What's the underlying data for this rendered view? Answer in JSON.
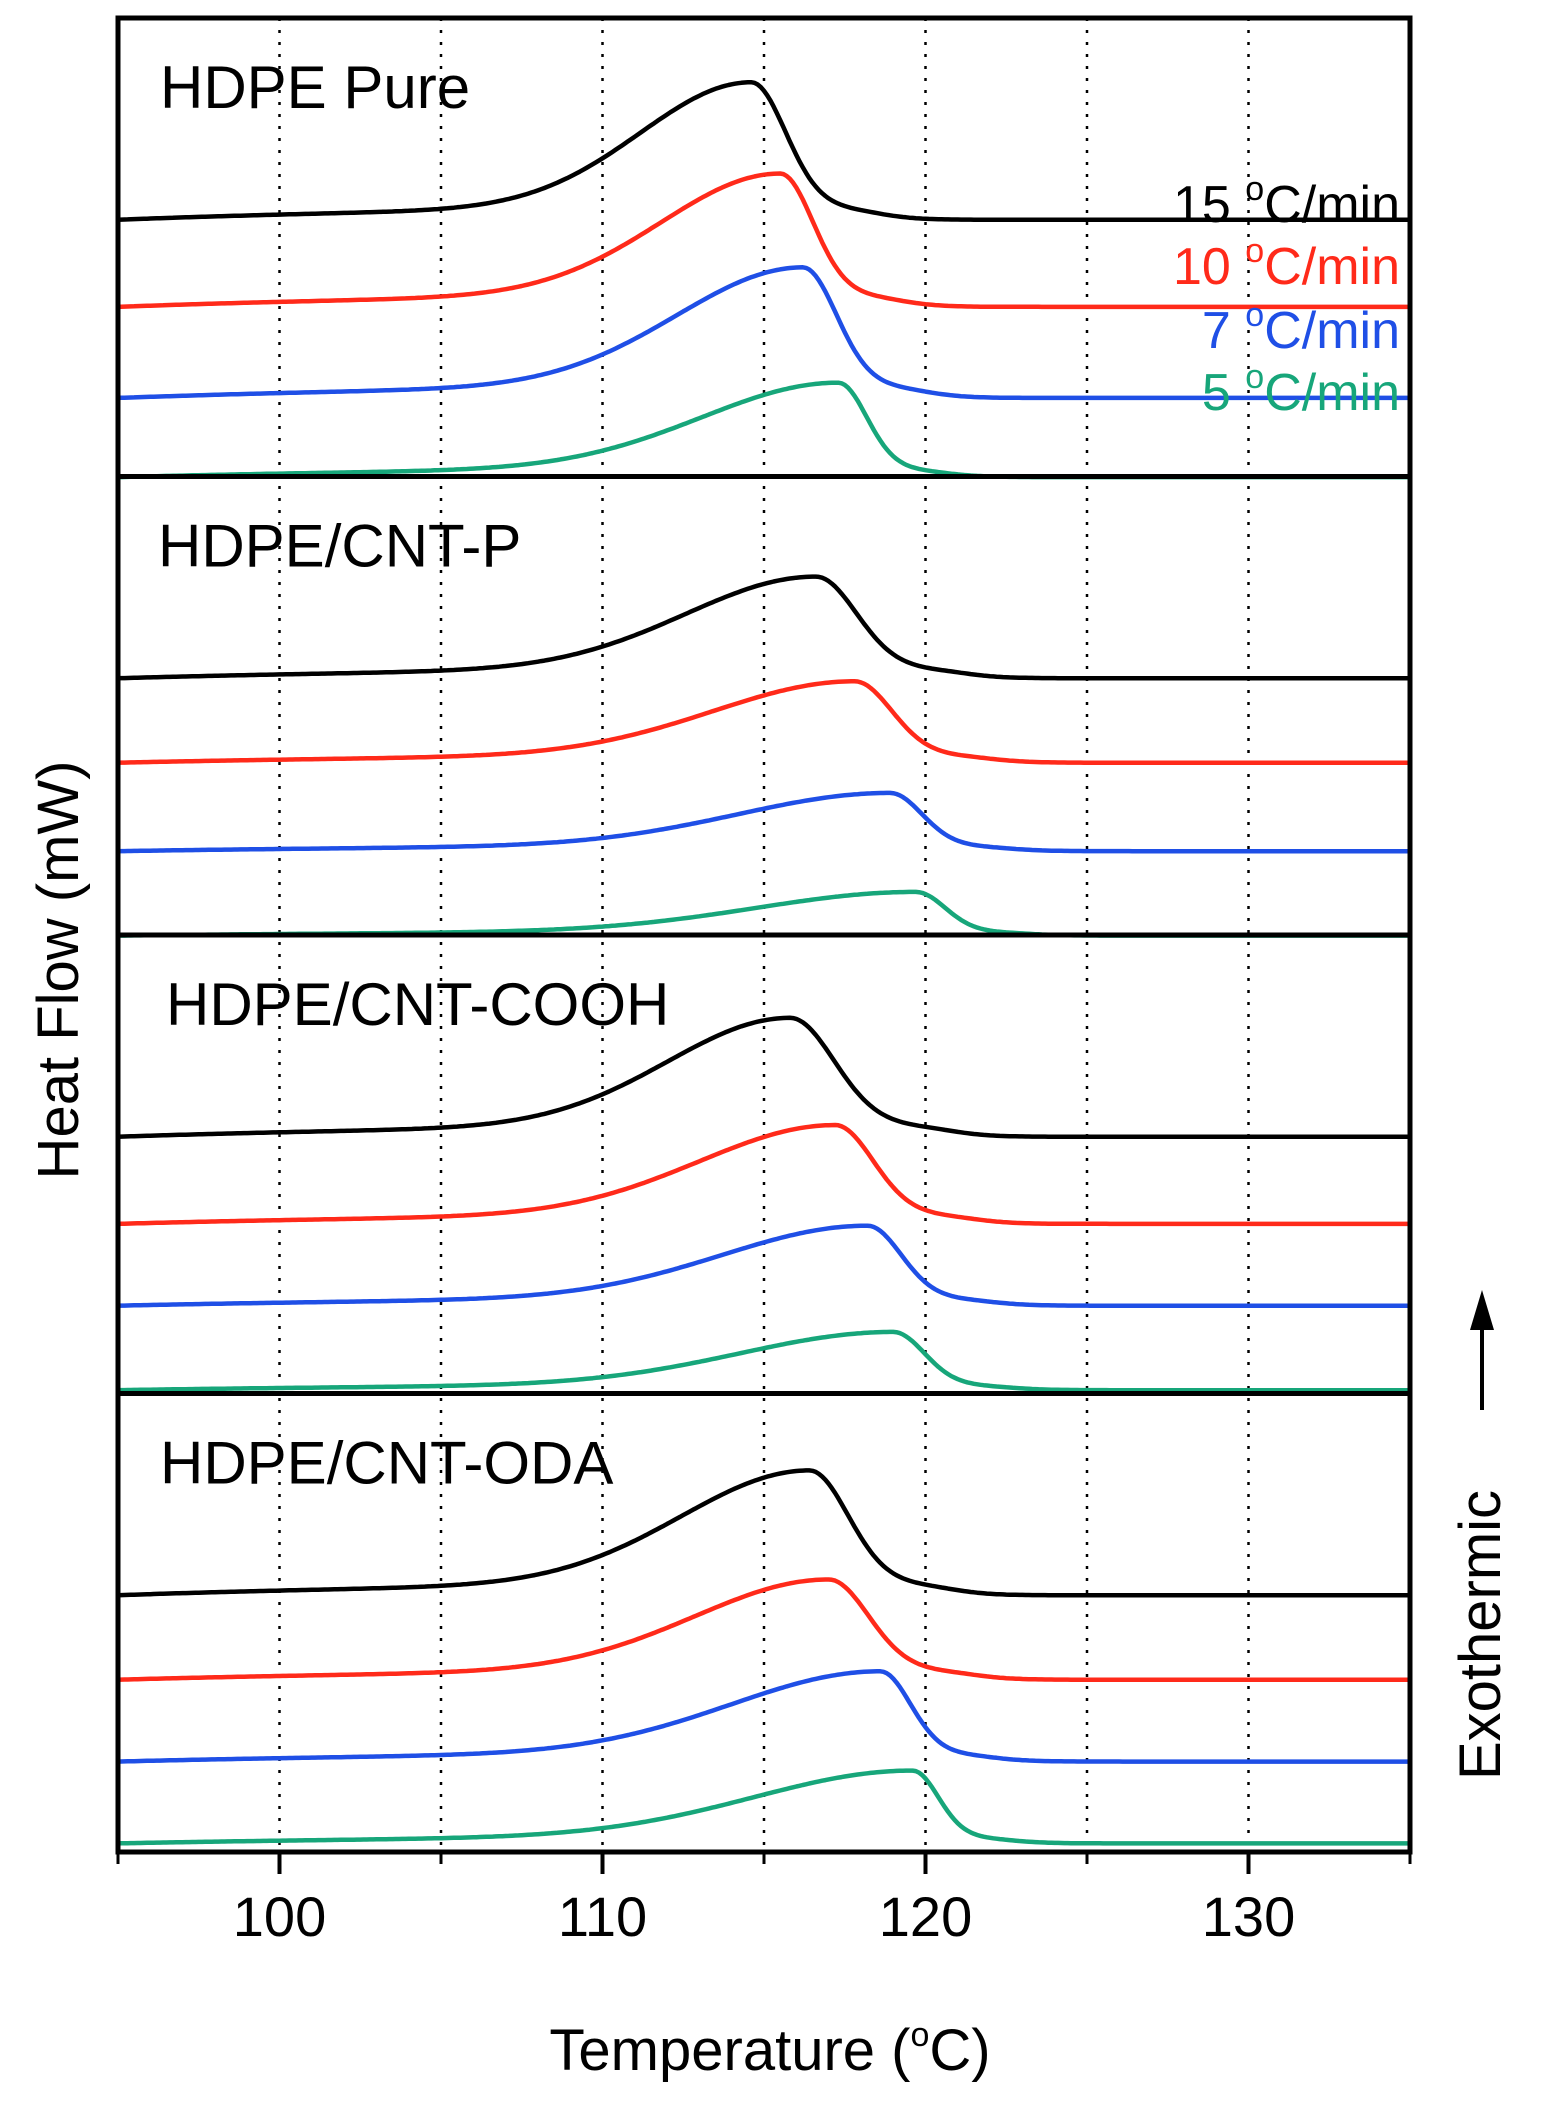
{
  "chart_data": {
    "type": "line",
    "xlabel": "Temperature (°C)",
    "xlabel_parts": {
      "before": "Temperature (",
      "sup": "o",
      "after": "C)"
    },
    "ylabel": "Heat Flow (mW)",
    "arrow_label": "Exothermic",
    "xlim": [
      95,
      135
    ],
    "xticks_major": [
      100,
      110,
      120,
      130
    ],
    "xticks_minor": [
      95,
      105,
      115,
      125,
      135
    ],
    "grid": "dotted vertical lines at 100, 105, 110, 115, 120, 125, 130",
    "colors": {
      "15": "#000000",
      "10": "#ff2a1a",
      "7": "#1f4fe6",
      "5": "#17a67a"
    },
    "legend": [
      {
        "rate": "15",
        "before": "15 ",
        "sup": "o",
        "after": "C/min",
        "color": "#000000"
      },
      {
        "rate": "10",
        "before": "10 ",
        "sup": "o",
        "after": "C/min",
        "color": "#ff2a1a"
      },
      {
        "rate": "7",
        "before": "7 ",
        "sup": "o",
        "after": "C/min",
        "color": "#1f4fe6"
      },
      {
        "rate": "5",
        "before": "5 ",
        "sup": "o",
        "after": "C/min",
        "color": "#17a67a"
      }
    ],
    "panels": [
      {
        "label": "HDPE Pure",
        "series": [
          {
            "rate": "15",
            "peak_T": 114.6,
            "onset_T": 118.5,
            "height": 0.095,
            "offset": 0.0
          },
          {
            "rate": "10",
            "peak_T": 115.5,
            "onset_T": 119.2,
            "height": 0.092,
            "offset": -0.066
          },
          {
            "rate": "7",
            "peak_T": 116.2,
            "onset_T": 120.0,
            "height": 0.09,
            "offset": -0.135
          },
          {
            "rate": "5",
            "peak_T": 117.3,
            "onset_T": 120.5,
            "height": 0.065,
            "offset": -0.195
          }
        ]
      },
      {
        "label": "HDPE/CNT-P",
        "series": [
          {
            "rate": "15",
            "peak_T": 116.6,
            "onset_T": 121.2,
            "height": 0.07,
            "offset": 0.0
          },
          {
            "rate": "10",
            "peak_T": 117.8,
            "onset_T": 122.0,
            "height": 0.056,
            "offset": -0.064
          },
          {
            "rate": "7",
            "peak_T": 118.9,
            "onset_T": 122.5,
            "height": 0.04,
            "offset": -0.131
          },
          {
            "rate": "5",
            "peak_T": 119.7,
            "onset_T": 123.0,
            "height": 0.03,
            "offset": -0.195
          }
        ]
      },
      {
        "label": "HDPE/CNT-COOH",
        "series": [
          {
            "rate": "15",
            "peak_T": 115.8,
            "onset_T": 120.8,
            "height": 0.082,
            "offset": 0.0
          },
          {
            "rate": "10",
            "peak_T": 117.2,
            "onset_T": 121.5,
            "height": 0.068,
            "offset": -0.066
          },
          {
            "rate": "7",
            "peak_T": 118.2,
            "onset_T": 122.0,
            "height": 0.055,
            "offset": -0.128
          },
          {
            "rate": "5",
            "peak_T": 119.0,
            "onset_T": 122.5,
            "height": 0.04,
            "offset": -0.192
          }
        ]
      },
      {
        "label": "HDPE/CNT-ODA",
        "series": [
          {
            "rate": "15",
            "peak_T": 116.4,
            "onset_T": 120.8,
            "height": 0.086,
            "offset": 0.0
          },
          {
            "rate": "10",
            "peak_T": 117.0,
            "onset_T": 121.5,
            "height": 0.069,
            "offset": -0.064
          },
          {
            "rate": "7",
            "peak_T": 118.6,
            "onset_T": 122.0,
            "height": 0.062,
            "offset": -0.126
          },
          {
            "rate": "5",
            "peak_T": 119.6,
            "onset_T": 122.5,
            "height": 0.05,
            "offset": -0.188
          }
        ]
      }
    ]
  }
}
